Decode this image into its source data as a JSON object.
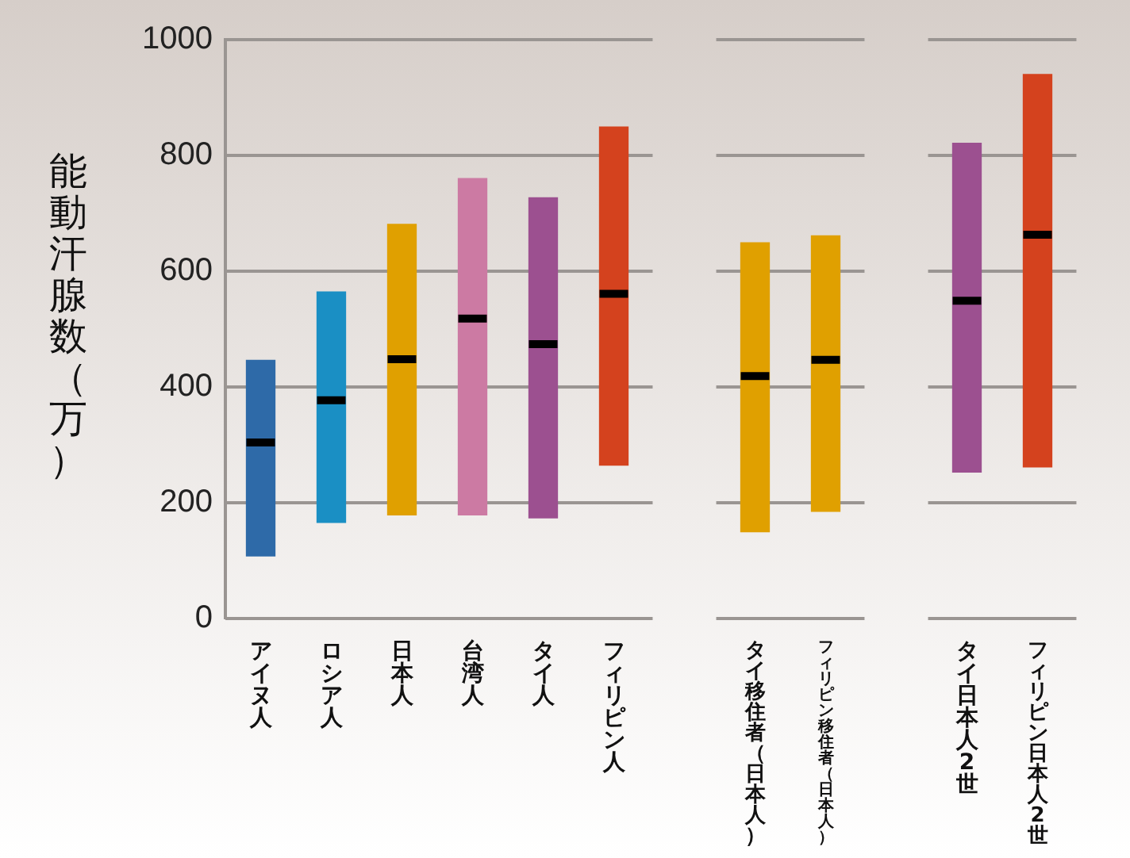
{
  "chart_data": {
    "type": "box",
    "ylabel": "能動汗腺数（万）",
    "categories": [
      "アイヌ人",
      "ロシア人",
      "日本人",
      "台湾人",
      "タイ人",
      "フィリピン人",
      null,
      "タイ移住者（日本人）",
      "フィリピン移住者（日本人）",
      null,
      "タイ日本人2世",
      "フィリピン日本人2世"
    ],
    "colors": [
      "#2e6aa8",
      "#1a8fc4",
      "#e0a000",
      "#cc7aa3",
      "#9c5090",
      "#d4421e",
      null,
      "#e0a000",
      "#e0a000",
      null,
      "#9c5090",
      "#d4421e"
    ],
    "boxes": [
      {
        "low": 108,
        "q1": 108,
        "median": 304,
        "q3": 446,
        "high": 446
      },
      {
        "low": 166,
        "q1": 166,
        "median": 377,
        "q3": 564,
        "high": 564
      },
      {
        "low": 179,
        "q1": 179,
        "median": 448,
        "q3": 681,
        "high": 681
      },
      {
        "low": 179,
        "q1": 179,
        "median": 518,
        "q3": 760,
        "high": 760
      },
      {
        "low": 174,
        "q1": 174,
        "median": 474,
        "q3": 727,
        "high": 727
      },
      {
        "low": 265,
        "q1": 265,
        "median": 561,
        "q3": 849,
        "high": 849
      },
      null,
      {
        "low": 150,
        "q1": 150,
        "median": 419,
        "q3": 649,
        "high": 649
      },
      {
        "low": 185,
        "q1": 185,
        "median": 447,
        "q3": 661,
        "high": 661
      },
      null,
      {
        "low": 253,
        "q1": 253,
        "median": 549,
        "q3": 821,
        "high": 821
      },
      {
        "low": 262,
        "q1": 262,
        "median": 663,
        "q3": 940,
        "high": 940
      }
    ],
    "ylim": [
      0,
      1000
    ],
    "yticks": [
      0,
      200,
      400,
      600,
      800,
      1000
    ],
    "grid": "y"
  }
}
